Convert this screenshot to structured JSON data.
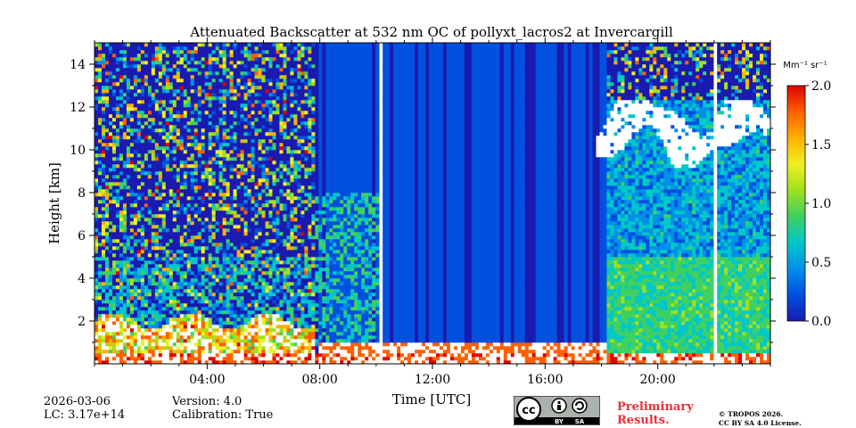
{
  "chart_data": {
    "type": "heatmap",
    "title": "Attenuated Backscatter at 532 nm OC of pollyxt_lacros2 at Invercargill",
    "xlabel": "Time [UTC]",
    "ylabel": "Height [km]",
    "xlim": [
      0,
      24
    ],
    "ylim": [
      0,
      15
    ],
    "x_ticks": [
      4,
      8,
      12,
      16,
      20
    ],
    "x_tick_labels": [
      "04:00",
      "08:00",
      "12:00",
      "16:00",
      "20:00"
    ],
    "y_ticks": [
      2,
      4,
      6,
      8,
      10,
      12,
      14
    ],
    "y_tick_labels": [
      "2",
      "4",
      "6",
      "8",
      "10",
      "12",
      "14"
    ],
    "colorbar": {
      "unit": "Mm⁻¹ sr⁻¹",
      "range": [
        0.0,
        2.0
      ],
      "ticks": [
        0.0,
        0.5,
        1.0,
        1.5,
        2.0
      ],
      "tick_labels": [
        "0.0",
        "0.5",
        "1.0",
        "1.5",
        "2.0"
      ],
      "colormap": [
        "#1a1ab0",
        "#0050e0",
        "#0090e8",
        "#00c8c8",
        "#40d060",
        "#a0e020",
        "#f0f020",
        "#ffb000",
        "#ff6000",
        "#e00000"
      ]
    },
    "regions": [
      {
        "feature": "noisy background",
        "time": [
          0,
          8
        ],
        "height": [
          3,
          15
        ],
        "value": "mixed 0-2"
      },
      {
        "feature": "boundary layer",
        "time": [
          0,
          7.8
        ],
        "height": [
          0,
          2.5
        ],
        "value": "1.0-2.0"
      },
      {
        "feature": "low signal (blue)",
        "time": [
          7.8,
          18.2
        ],
        "height": [
          0.5,
          15
        ],
        "value": "~0.2"
      },
      {
        "feature": "aerosol layer",
        "time": [
          18,
          24
        ],
        "height": [
          0,
          5
        ],
        "value": "0.6-1.0"
      },
      {
        "feature": "cirrus cloud (saturated)",
        "time": [
          17.8,
          24
        ],
        "height": [
          9.2,
          12.3
        ],
        "value": ">2.0"
      },
      {
        "feature": "data gaps",
        "time": [
          10.1,
          22.1
        ],
        "height": [
          0,
          15
        ],
        "value": "none"
      }
    ]
  },
  "info": {
    "date": "2026-03-06",
    "lc": "LC: 3.17e+14",
    "version": "Version: 4.0",
    "calibration": "Calibration: True"
  },
  "branding": {
    "preliminary_line1": "Preliminary",
    "preliminary_line2": "Results.",
    "copyright_line1": "© TROPOS 2026.",
    "copyright_line2": "CC BY SA 4.0 License.",
    "badge_by": "BY",
    "badge_sa": "SA",
    "badge_cc": "cc"
  }
}
